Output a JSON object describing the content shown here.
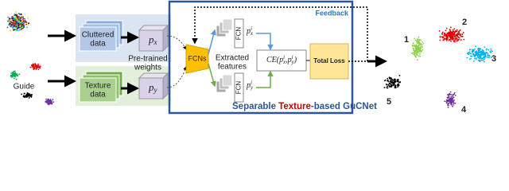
{
  "input": {
    "guide": "Guide"
  },
  "cluttered": {
    "line1": "Cluttered",
    "line2": "data"
  },
  "texture": {
    "line1": "Texture",
    "line2": "data"
  },
  "px": {
    "base": "p",
    "sub": "x"
  },
  "py": {
    "base": "p",
    "sub": "y"
  },
  "weights": {
    "line1": "Pre-trained",
    "line2": "weights"
  },
  "fcns": "FCNs",
  "fcn_top": "FCN",
  "fcn_bottom": "FCN",
  "pix": {
    "base": "p",
    "sup": "i",
    "sub": "x"
  },
  "piy": {
    "base": "p",
    "sup": "i",
    "sub": "y"
  },
  "features": {
    "line1": "Extracted",
    "line2": "features"
  },
  "ce": {
    "open": "CE(",
    "a": {
      "base": "p",
      "sup": "i",
      "sub": "x"
    },
    "comma": ",",
    "b": {
      "base": "p",
      "sup": "i",
      "sub": "y"
    },
    "close": ")"
  },
  "total_loss": "Total Loss",
  "feedback": "Feedback",
  "net_title": {
    "part1": "Separable ",
    "part2": "Texture",
    "part3": "-based GuCNet"
  },
  "clusters": [
    "1",
    "2",
    "3",
    "4",
    "5"
  ]
}
